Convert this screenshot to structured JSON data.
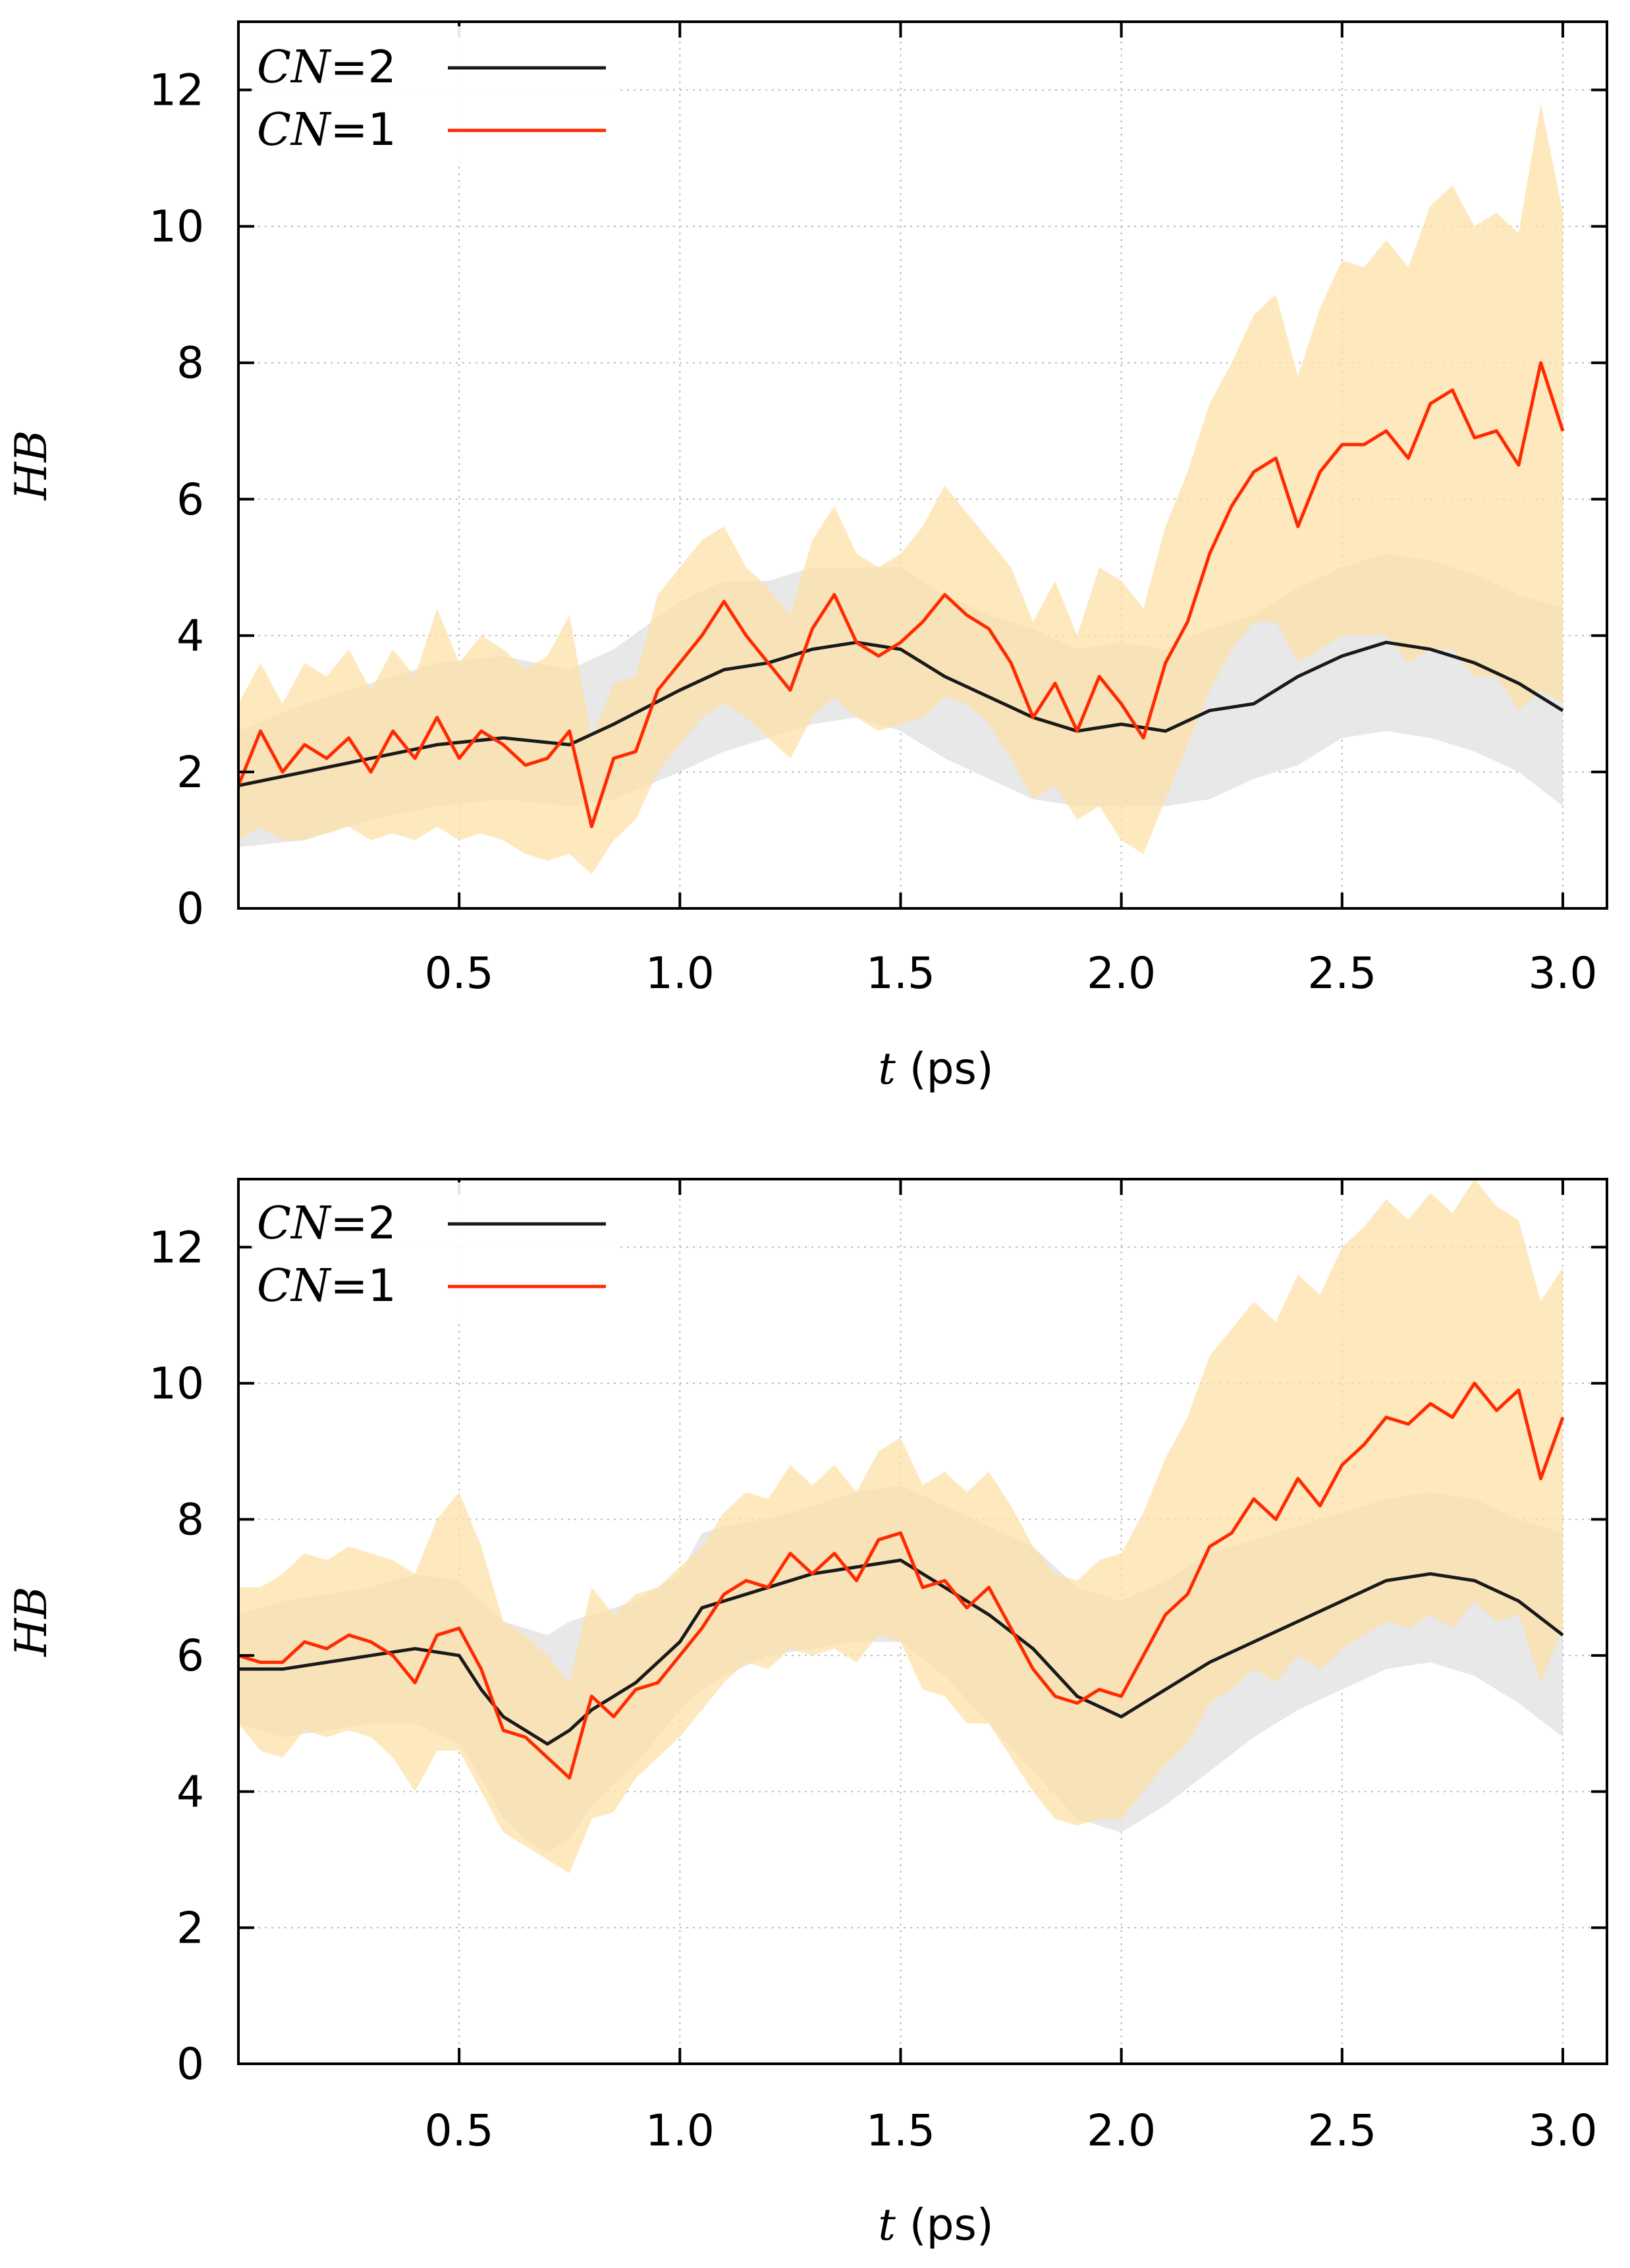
{
  "colors": {
    "cn2_line": "#1a1a1a",
    "cn1_line": "#ff2a00",
    "cn2_band": "#e6e6e6",
    "cn1_band": "#fde0a8",
    "grid": "#bbbbbb",
    "axis": "#000000"
  },
  "chart_data": [
    {
      "type": "line",
      "title": "",
      "xlabel_var": "t",
      "xlabel_unit": " (ps)",
      "ylabel": "HB",
      "xlim": [
        0.0,
        3.1
      ],
      "ylim": [
        0,
        13
      ],
      "xticks": [
        0.5,
        1.0,
        1.5,
        2.0,
        2.5,
        3.0
      ],
      "xtick_labels": [
        "0.5",
        "1.0",
        "1.5",
        "2.0",
        "2.5",
        "3.0"
      ],
      "yticks": [
        0,
        2,
        4,
        6,
        8,
        10,
        12
      ],
      "ytick_labels": [
        "0",
        "2",
        "4",
        "6",
        "8",
        "10",
        "12"
      ],
      "grid": true,
      "legend_position": "top-left",
      "series": [
        {
          "name_var": "CN",
          "name_rest": "=2",
          "color": "cn2",
          "x": [
            0.0,
            0.15,
            0.3,
            0.45,
            0.6,
            0.75,
            0.85,
            1.0,
            1.1,
            1.2,
            1.3,
            1.4,
            1.5,
            1.6,
            1.7,
            1.8,
            1.9,
            2.0,
            2.1,
            2.2,
            2.3,
            2.4,
            2.5,
            2.6,
            2.7,
            2.8,
            2.9,
            3.0
          ],
          "mean": [
            1.8,
            2.0,
            2.2,
            2.4,
            2.5,
            2.4,
            2.7,
            3.2,
            3.5,
            3.6,
            3.8,
            3.9,
            3.8,
            3.4,
            3.1,
            2.8,
            2.6,
            2.7,
            2.6,
            2.9,
            3.0,
            3.4,
            3.7,
            3.9,
            3.8,
            3.6,
            3.3,
            2.9
          ],
          "lower": [
            0.9,
            1.0,
            1.3,
            1.5,
            1.6,
            1.5,
            1.6,
            2.0,
            2.3,
            2.5,
            2.7,
            2.8,
            2.6,
            2.2,
            1.9,
            1.6,
            1.5,
            1.5,
            1.5,
            1.6,
            1.9,
            2.1,
            2.5,
            2.6,
            2.5,
            2.3,
            2.0,
            1.5
          ],
          "upper": [
            2.6,
            3.0,
            3.3,
            3.6,
            3.7,
            3.5,
            3.8,
            4.5,
            4.8,
            4.8,
            5.0,
            5.0,
            5.0,
            4.6,
            4.3,
            4.1,
            3.8,
            3.9,
            3.8,
            4.1,
            4.3,
            4.7,
            5.0,
            5.2,
            5.1,
            4.9,
            4.6,
            4.4
          ]
        },
        {
          "name_var": "CN",
          "name_rest": "=1",
          "color": "cn1",
          "x": [
            0.0,
            0.05,
            0.1,
            0.15,
            0.2,
            0.25,
            0.3,
            0.35,
            0.4,
            0.45,
            0.5,
            0.55,
            0.6,
            0.65,
            0.7,
            0.75,
            0.8,
            0.85,
            0.9,
            0.95,
            1.0,
            1.05,
            1.1,
            1.15,
            1.2,
            1.25,
            1.3,
            1.35,
            1.4,
            1.45,
            1.5,
            1.55,
            1.6,
            1.65,
            1.7,
            1.75,
            1.8,
            1.85,
            1.9,
            1.95,
            2.0,
            2.05,
            2.1,
            2.15,
            2.2,
            2.25,
            2.3,
            2.35,
            2.4,
            2.45,
            2.5,
            2.55,
            2.6,
            2.65,
            2.7,
            2.75,
            2.8,
            2.85,
            2.9,
            2.95,
            3.0
          ],
          "mean": [
            1.8,
            2.6,
            2.0,
            2.4,
            2.2,
            2.5,
            2.0,
            2.6,
            2.2,
            2.8,
            2.2,
            2.6,
            2.4,
            2.1,
            2.2,
            2.6,
            1.2,
            2.2,
            2.3,
            3.2,
            3.6,
            4.0,
            4.5,
            4.0,
            3.6,
            3.2,
            4.1,
            4.6,
            3.9,
            3.7,
            3.9,
            4.2,
            4.6,
            4.3,
            4.1,
            3.6,
            2.8,
            3.3,
            2.6,
            3.4,
            3.0,
            2.5,
            3.6,
            4.2,
            5.2,
            5.9,
            6.4,
            6.6,
            5.6,
            6.4,
            6.8,
            6.8,
            7.0,
            6.6,
            7.4,
            7.6,
            6.9,
            7.0,
            6.5,
            8.0,
            7.0
          ],
          "lower": [
            1.0,
            1.2,
            1.0,
            1.0,
            1.1,
            1.2,
            1.0,
            1.1,
            1.0,
            1.2,
            1.0,
            1.1,
            1.0,
            0.8,
            0.7,
            0.8,
            0.5,
            1.0,
            1.3,
            2.0,
            2.4,
            2.8,
            3.0,
            2.8,
            2.5,
            2.2,
            2.8,
            3.1,
            2.8,
            2.6,
            2.7,
            2.8,
            3.1,
            3.0,
            2.7,
            2.2,
            1.6,
            1.8,
            1.3,
            1.5,
            1.0,
            0.8,
            1.6,
            2.4,
            3.2,
            3.8,
            4.2,
            4.2,
            3.6,
            3.8,
            4.0,
            4.0,
            4.0,
            3.6,
            3.8,
            3.8,
            3.4,
            3.4,
            2.9,
            3.2,
            3.0
          ],
          "upper": [
            3.0,
            3.6,
            3.0,
            3.6,
            3.4,
            3.8,
            3.2,
            3.8,
            3.4,
            4.4,
            3.6,
            4.0,
            3.8,
            3.5,
            3.7,
            4.3,
            2.5,
            3.3,
            3.4,
            4.6,
            5.0,
            5.4,
            5.6,
            5.0,
            4.7,
            4.3,
            5.4,
            5.9,
            5.2,
            5.0,
            5.2,
            5.6,
            6.2,
            5.8,
            5.4,
            5.0,
            4.2,
            4.8,
            4.0,
            5.0,
            4.8,
            4.4,
            5.6,
            6.4,
            7.4,
            8.0,
            8.7,
            9.0,
            7.8,
            8.8,
            9.5,
            9.4,
            9.8,
            9.4,
            10.3,
            10.6,
            10.0,
            10.2,
            9.9,
            11.8,
            10.2
          ]
        }
      ]
    },
    {
      "type": "line",
      "title": "",
      "xlabel_var": "t",
      "xlabel_unit": " (ps)",
      "ylabel": "HB",
      "xlim": [
        0.0,
        3.1
      ],
      "ylim": [
        0,
        13
      ],
      "xticks": [
        0.5,
        1.0,
        1.5,
        2.0,
        2.5,
        3.0
      ],
      "xtick_labels": [
        "0.5",
        "1.0",
        "1.5",
        "2.0",
        "2.5",
        "3.0"
      ],
      "yticks": [
        0,
        2,
        4,
        6,
        8,
        10,
        12
      ],
      "ytick_labels": [
        "0",
        "2",
        "4",
        "6",
        "8",
        "10",
        "12"
      ],
      "grid": true,
      "legend_position": "top-left",
      "series": [
        {
          "name_var": "CN",
          "name_rest": "=2",
          "color": "cn2",
          "x": [
            0.0,
            0.1,
            0.2,
            0.3,
            0.4,
            0.5,
            0.55,
            0.6,
            0.65,
            0.7,
            0.75,
            0.8,
            0.9,
            1.0,
            1.05,
            1.1,
            1.2,
            1.3,
            1.4,
            1.5,
            1.6,
            1.7,
            1.8,
            1.9,
            2.0,
            2.1,
            2.2,
            2.3,
            2.4,
            2.5,
            2.6,
            2.7,
            2.8,
            2.9,
            3.0
          ],
          "mean": [
            5.8,
            5.8,
            5.9,
            6.0,
            6.1,
            6.0,
            5.5,
            5.1,
            4.9,
            4.7,
            4.9,
            5.2,
            5.6,
            6.2,
            6.7,
            6.8,
            7.0,
            7.2,
            7.3,
            7.4,
            7.0,
            6.6,
            6.1,
            5.4,
            5.1,
            5.5,
            5.9,
            6.2,
            6.5,
            6.8,
            7.1,
            7.2,
            7.1,
            6.8,
            6.3
          ],
          "lower": [
            5.0,
            4.8,
            4.9,
            5.0,
            5.0,
            4.7,
            4.2,
            3.6,
            3.3,
            3.1,
            3.3,
            3.8,
            4.4,
            5.2,
            5.5,
            5.7,
            6.0,
            6.1,
            6.2,
            6.2,
            5.7,
            5.0,
            4.3,
            3.6,
            3.4,
            3.8,
            4.3,
            4.8,
            5.2,
            5.5,
            5.8,
            5.9,
            5.7,
            5.3,
            4.8
          ],
          "upper": [
            6.6,
            6.8,
            6.9,
            7.0,
            7.2,
            7.1,
            6.8,
            6.5,
            6.4,
            6.3,
            6.5,
            6.6,
            6.8,
            7.2,
            7.8,
            7.9,
            8.0,
            8.2,
            8.4,
            8.5,
            8.2,
            7.9,
            7.6,
            7.0,
            6.8,
            7.1,
            7.5,
            7.7,
            7.9,
            8.1,
            8.3,
            8.4,
            8.3,
            8.0,
            7.8
          ]
        },
        {
          "name_var": "CN",
          "name_rest": "=1",
          "color": "cn1",
          "x": [
            0.0,
            0.05,
            0.1,
            0.15,
            0.2,
            0.25,
            0.3,
            0.35,
            0.4,
            0.45,
            0.5,
            0.55,
            0.6,
            0.65,
            0.7,
            0.75,
            0.8,
            0.85,
            0.9,
            0.95,
            1.0,
            1.05,
            1.1,
            1.15,
            1.2,
            1.25,
            1.3,
            1.35,
            1.4,
            1.45,
            1.5,
            1.55,
            1.6,
            1.65,
            1.7,
            1.75,
            1.8,
            1.85,
            1.9,
            1.95,
            2.0,
            2.05,
            2.1,
            2.15,
            2.2,
            2.25,
            2.3,
            2.35,
            2.4,
            2.45,
            2.5,
            2.55,
            2.6,
            2.65,
            2.7,
            2.75,
            2.8,
            2.85,
            2.9,
            2.95,
            3.0
          ],
          "mean": [
            6.0,
            5.9,
            5.9,
            6.2,
            6.1,
            6.3,
            6.2,
            6.0,
            5.6,
            6.3,
            6.4,
            5.8,
            4.9,
            4.8,
            4.5,
            4.2,
            5.4,
            5.1,
            5.5,
            5.6,
            6.0,
            6.4,
            6.9,
            7.1,
            7.0,
            7.5,
            7.2,
            7.5,
            7.1,
            7.7,
            7.8,
            7.0,
            7.1,
            6.7,
            7.0,
            6.4,
            5.8,
            5.4,
            5.3,
            5.5,
            5.4,
            6.0,
            6.6,
            6.9,
            7.6,
            7.8,
            8.3,
            8.0,
            8.6,
            8.2,
            8.8,
            9.1,
            9.5,
            9.4,
            9.7,
            9.5,
            10.0,
            9.6,
            9.9,
            8.6,
            9.5
          ],
          "lower": [
            5.0,
            4.6,
            4.5,
            4.9,
            4.8,
            4.9,
            4.8,
            4.5,
            4.0,
            4.6,
            4.6,
            4.0,
            3.4,
            3.2,
            3.0,
            2.8,
            3.6,
            3.7,
            4.2,
            4.5,
            4.8,
            5.2,
            5.6,
            5.9,
            5.8,
            6.1,
            6.0,
            6.1,
            5.9,
            6.3,
            6.2,
            5.5,
            5.4,
            5.0,
            5.0,
            4.5,
            4.0,
            3.6,
            3.5,
            3.6,
            3.6,
            4.0,
            4.4,
            4.7,
            5.3,
            5.5,
            5.8,
            5.6,
            6.0,
            5.8,
            6.1,
            6.3,
            6.5,
            6.4,
            6.6,
            6.4,
            6.8,
            6.5,
            6.6,
            5.6,
            6.4
          ],
          "upper": [
            7.0,
            7.0,
            7.2,
            7.5,
            7.4,
            7.6,
            7.5,
            7.4,
            7.2,
            8.0,
            8.4,
            7.6,
            6.5,
            6.3,
            6.0,
            5.6,
            7.0,
            6.6,
            6.9,
            7.0,
            7.3,
            7.6,
            8.1,
            8.4,
            8.3,
            8.8,
            8.5,
            8.8,
            8.4,
            9.0,
            9.2,
            8.5,
            8.7,
            8.4,
            8.7,
            8.2,
            7.6,
            7.2,
            7.1,
            7.4,
            7.5,
            8.1,
            8.9,
            9.5,
            10.4,
            10.8,
            11.2,
            10.9,
            11.6,
            11.3,
            12.0,
            12.3,
            12.7,
            12.4,
            12.8,
            12.5,
            13.0,
            12.6,
            12.4,
            11.2,
            11.7
          ]
        }
      ]
    }
  ]
}
